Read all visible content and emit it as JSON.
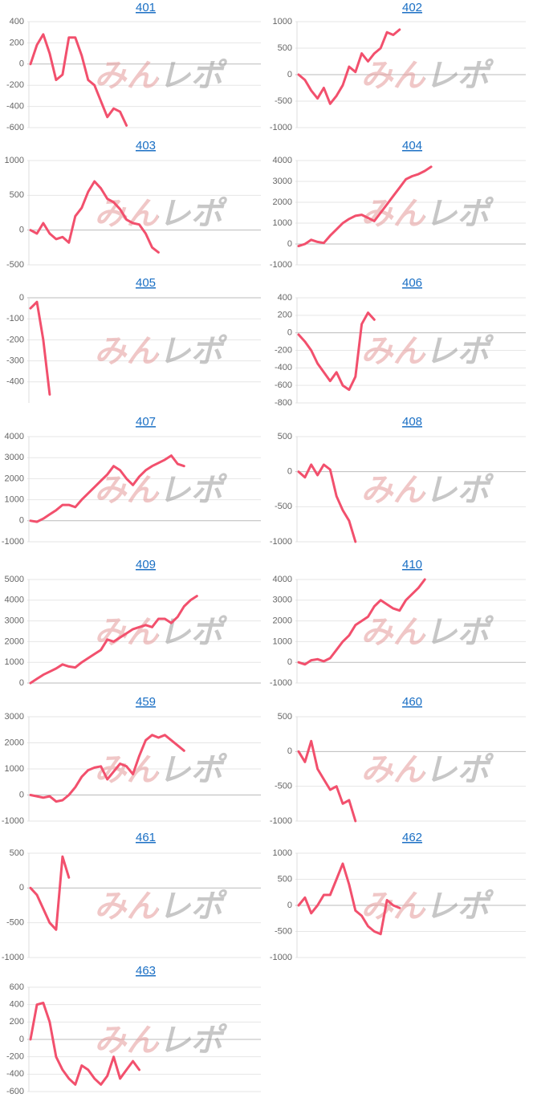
{
  "watermark": "みんレポ",
  "chart_data": [
    {
      "type": "line",
      "title": "401",
      "color": "#f2506d",
      "ylim": [
        -600,
        400
      ],
      "yticks": [
        400,
        200,
        0,
        -200,
        -400,
        -600
      ],
      "values": [
        0,
        180,
        280,
        100,
        -150,
        -100,
        250,
        250,
        80,
        -150,
        -200,
        -350,
        -500,
        -420,
        -450,
        -580
      ]
    },
    {
      "type": "line",
      "title": "402",
      "color": "#f2506d",
      "ylim": [
        -1000,
        1000
      ],
      "yticks": [
        1000,
        500,
        0,
        -500,
        -1000
      ],
      "values": [
        0,
        -100,
        -300,
        -450,
        -250,
        -550,
        -400,
        -200,
        150,
        50,
        400,
        250,
        400,
        500,
        800,
        750,
        850
      ]
    },
    {
      "type": "line",
      "title": "403",
      "color": "#f2506d",
      "ylim": [
        -500,
        1000
      ],
      "yticks": [
        1000,
        500,
        0,
        -500
      ],
      "values": [
        0,
        -50,
        100,
        -50,
        -130,
        -100,
        -180,
        200,
        320,
        550,
        700,
        600,
        450,
        400,
        300,
        150,
        100,
        80,
        -50,
        -250,
        -320
      ]
    },
    {
      "type": "line",
      "title": "404",
      "color": "#f2506d",
      "ylim": [
        -1000,
        4000
      ],
      "yticks": [
        4000,
        3000,
        2000,
        1000,
        0,
        -1000
      ],
      "values": [
        -100,
        0,
        200,
        100,
        50,
        400,
        700,
        1000,
        1200,
        1350,
        1400,
        1250,
        1100,
        1500,
        1900,
        2300,
        2700,
        3100,
        3250,
        3350,
        3500,
        3700
      ]
    },
    {
      "type": "line",
      "title": "405",
      "color": "#f2506d",
      "ylim": [
        -500,
        0
      ],
      "yticks": [
        0,
        -100,
        -200,
        -300,
        -400
      ],
      "values": [
        -50,
        -20,
        -200,
        -460
      ]
    },
    {
      "type": "line",
      "title": "406",
      "color": "#f2506d",
      "ylim": [
        -800,
        400
      ],
      "yticks": [
        400,
        200,
        0,
        -200,
        -400,
        -600,
        -800
      ],
      "values": [
        -20,
        -100,
        -200,
        -350,
        -450,
        -550,
        -450,
        -600,
        -650,
        -500,
        100,
        230,
        150
      ]
    },
    {
      "type": "line",
      "title": "407",
      "color": "#f2506d",
      "ylim": [
        -1000,
        4000
      ],
      "yticks": [
        4000,
        3000,
        2000,
        1000,
        0,
        -1000
      ],
      "values": [
        0,
        -50,
        100,
        300,
        500,
        750,
        750,
        650,
        1000,
        1300,
        1600,
        1900,
        2200,
        2600,
        2400,
        2000,
        1700,
        2100,
        2400,
        2600,
        2750,
        2900,
        3100,
        2700,
        2600
      ]
    },
    {
      "type": "line",
      "title": "408",
      "color": "#f2506d",
      "ylim": [
        -1000,
        500
      ],
      "yticks": [
        500,
        0,
        -500,
        -1000
      ],
      "values": [
        0,
        -80,
        100,
        -50,
        100,
        30,
        -350,
        -550,
        -700,
        -1000
      ]
    },
    {
      "type": "line",
      "title": "409",
      "color": "#f2506d",
      "ylim": [
        0,
        5000
      ],
      "yticks": [
        5000,
        4000,
        3000,
        2000,
        1000,
        0
      ],
      "values": [
        0,
        200,
        400,
        550,
        700,
        900,
        800,
        750,
        1000,
        1200,
        1400,
        1600,
        2100,
        2000,
        2200,
        2400,
        2600,
        2700,
        2800,
        2700,
        3100,
        3100,
        2900,
        3200,
        3700,
        4000,
        4200
      ]
    },
    {
      "type": "line",
      "title": "410",
      "color": "#f2506d",
      "ylim": [
        -1000,
        4000
      ],
      "yticks": [
        4000,
        3000,
        2000,
        1000,
        0,
        -1000
      ],
      "values": [
        0,
        -100,
        100,
        150,
        50,
        200,
        600,
        1000,
        1300,
        1800,
        2000,
        2200,
        2700,
        3000,
        2800,
        2600,
        2500,
        3000,
        3300,
        3600,
        4000
      ]
    },
    {
      "type": "line",
      "title": "459",
      "color": "#f2506d",
      "ylim": [
        -1000,
        3000
      ],
      "yticks": [
        3000,
        2000,
        1000,
        0,
        -1000
      ],
      "values": [
        0,
        -50,
        -100,
        -50,
        -250,
        -200,
        0,
        300,
        700,
        950,
        1050,
        1100,
        600,
        900,
        1200,
        1100,
        800,
        1500,
        2100,
        2300,
        2200,
        2300,
        2100,
        1900,
        1700
      ]
    },
    {
      "type": "line",
      "title": "460",
      "color": "#f2506d",
      "ylim": [
        -1000,
        500
      ],
      "yticks": [
        500,
        0,
        -500,
        -1000
      ],
      "values": [
        0,
        -150,
        150,
        -250,
        -400,
        -550,
        -500,
        -750,
        -700,
        -1000
      ]
    },
    {
      "type": "line",
      "title": "461",
      "color": "#f2506d",
      "ylim": [
        -1000,
        500
      ],
      "yticks": [
        500,
        0,
        -500,
        -1000
      ],
      "values": [
        0,
        -100,
        -300,
        -500,
        -600,
        450,
        150
      ]
    },
    {
      "type": "line",
      "title": "462",
      "color": "#f2506d",
      "ylim": [
        -1000,
        1000
      ],
      "yticks": [
        1000,
        500,
        0,
        -500,
        -1000
      ],
      "values": [
        0,
        150,
        -150,
        0,
        200,
        200,
        500,
        800,
        400,
        -100,
        -200,
        -400,
        -500,
        -550,
        100,
        0,
        -50
      ]
    },
    {
      "type": "line",
      "title": "463",
      "color": "#f2506d",
      "ylim": [
        -600,
        600
      ],
      "yticks": [
        600,
        400,
        200,
        0,
        -200,
        -400,
        -600
      ],
      "values": [
        0,
        400,
        420,
        200,
        -200,
        -350,
        -450,
        -520,
        -300,
        -350,
        -450,
        -520,
        -420,
        -200,
        -450,
        -350,
        -250,
        -350
      ]
    }
  ]
}
